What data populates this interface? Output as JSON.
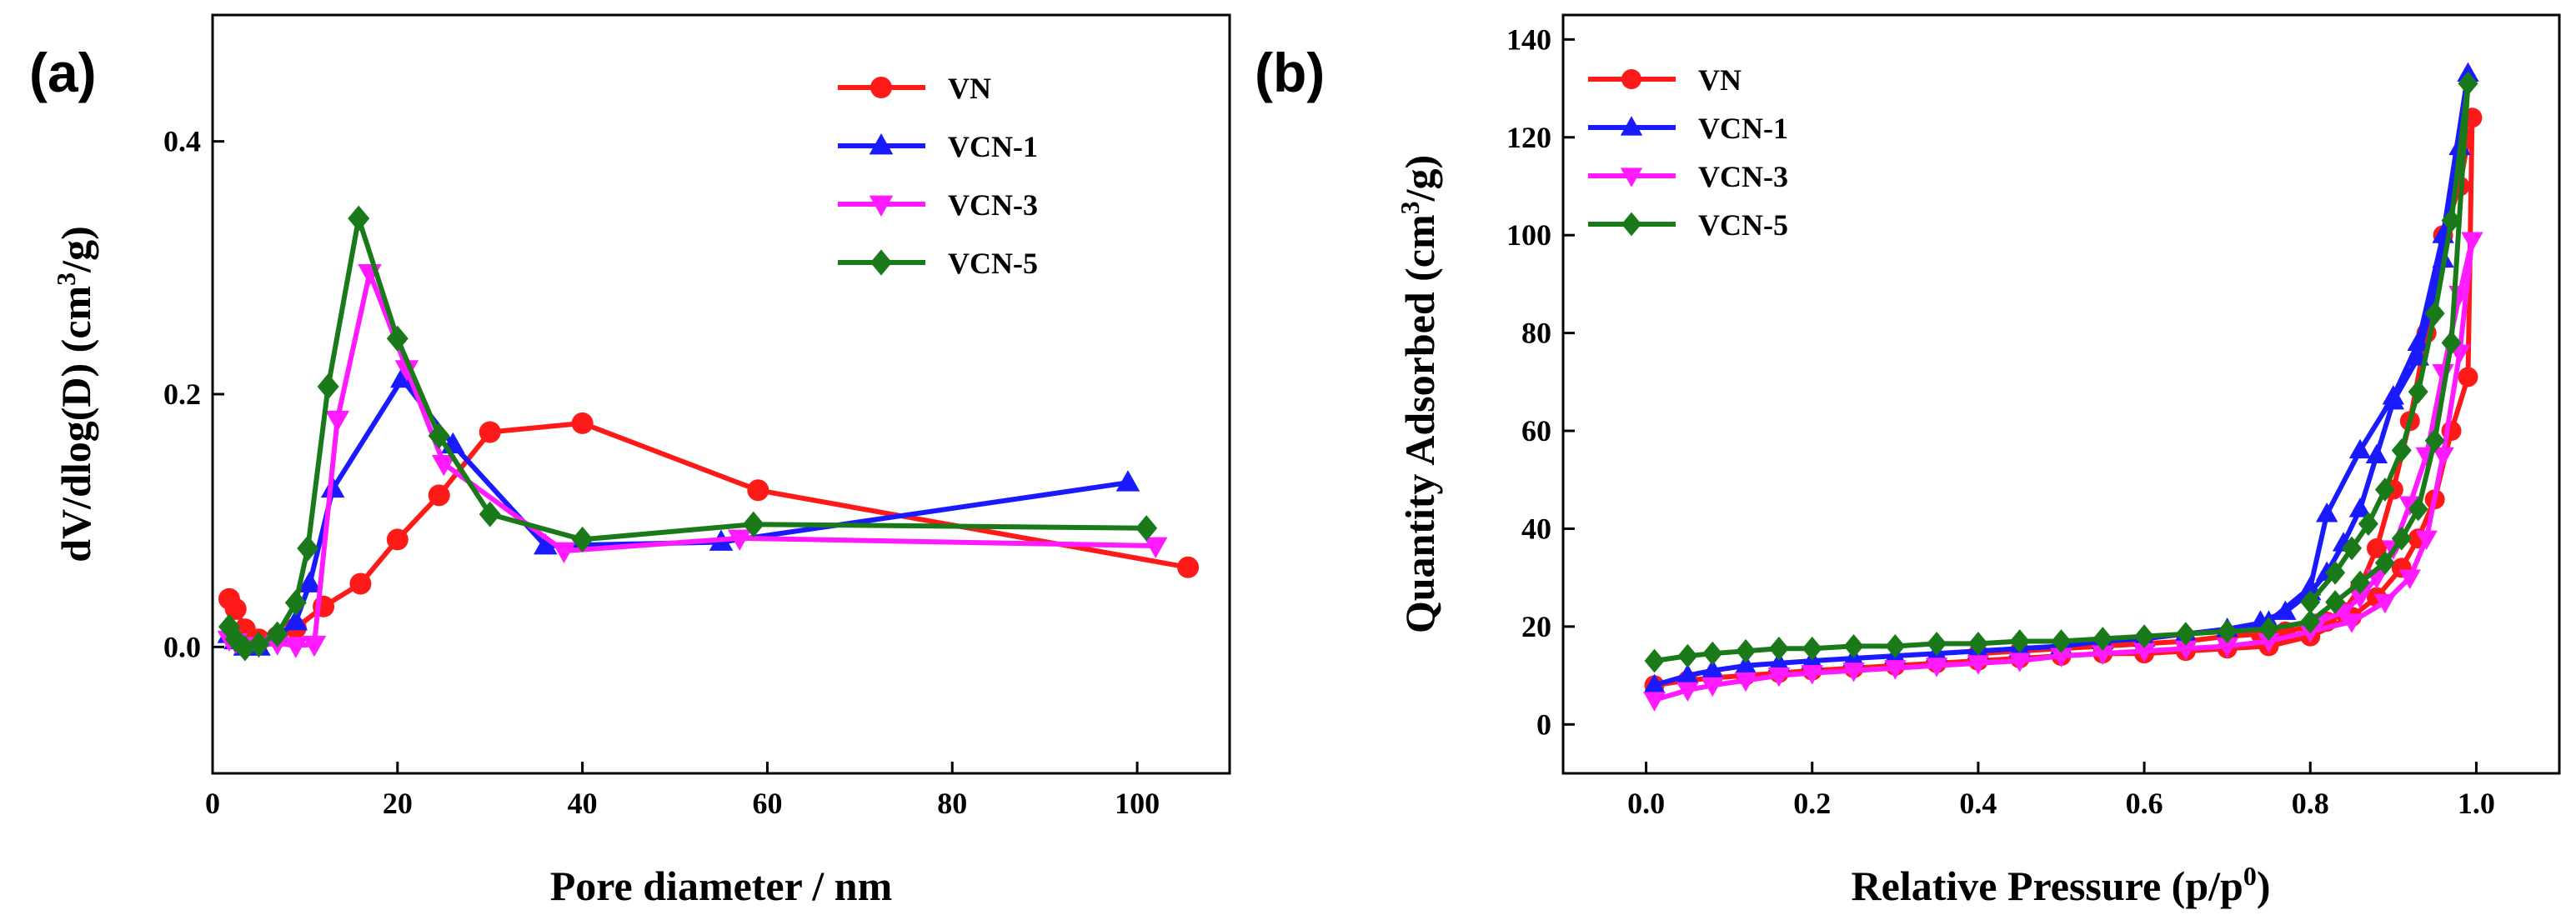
{
  "chart_data": [
    {
      "type": "line",
      "panel_label": "(a)",
      "xlabel": "Pore diameter / nm",
      "ylabel_main": "dV/dlog(D) (cm",
      "ylabel_sup": "3",
      "ylabel_end": "/g)",
      "xlim": [
        0,
        110
      ],
      "ylim": [
        -0.1,
        0.5
      ],
      "xticks": [
        "0",
        "20",
        "40",
        "60",
        "80",
        "100"
      ],
      "yticks": [
        "0.0",
        "0.2",
        "0.4"
      ],
      "legend_position": "top-right",
      "series": [
        {
          "name": "VN",
          "color": "#ff1a1a",
          "marker": "circle",
          "x": [
            1.8,
            2.5,
            3.5,
            5,
            7,
            9,
            12,
            16,
            20,
            24.5,
            30,
            40,
            59,
            105.5
          ],
          "y": [
            0.038,
            0.03,
            0.014,
            0.006,
            0.008,
            0.015,
            0.032,
            0.05,
            0.085,
            0.12,
            0.17,
            0.177,
            0.124,
            0.063
          ]
        },
        {
          "name": "VCN-1",
          "color": "#1a1aff",
          "marker": "triangle-up",
          "x": [
            1.8,
            2.5,
            3.5,
            5,
            7,
            9,
            10.5,
            13,
            20.5,
            26,
            36,
            55,
            99
          ],
          "y": [
            0.01,
            0.005,
            0.0,
            0.0,
            0.008,
            0.02,
            0.05,
            0.125,
            0.212,
            0.16,
            0.08,
            0.083,
            0.13
          ]
        },
        {
          "name": "VCN-3",
          "color": "#ff1aff",
          "marker": "triangle-down",
          "x": [
            1.8,
            2.5,
            3.5,
            5,
            7,
            9,
            11,
            13.5,
            17,
            21,
            25,
            38,
            57,
            102
          ],
          "y": [
            0.006,
            0.004,
            0.001,
            0.001,
            0.003,
            0.001,
            0.002,
            0.18,
            0.296,
            0.22,
            0.145,
            0.076,
            0.086,
            0.08
          ]
        },
        {
          "name": "VCN-5",
          "color": "#1a7a1a",
          "marker": "diamond",
          "x": [
            1.8,
            2.5,
            3.5,
            5,
            7,
            9,
            10.3,
            12.5,
            15.8,
            20,
            24.5,
            30,
            40,
            58.5,
            101
          ],
          "y": [
            0.016,
            0.006,
            -0.001,
            0.002,
            0.01,
            0.035,
            0.078,
            0.206,
            0.339,
            0.244,
            0.167,
            0.105,
            0.085,
            0.097,
            0.094
          ]
        }
      ]
    },
    {
      "type": "line",
      "panel_label": "(b)",
      "xlabel_main": "Relative Pressure (p/p",
      "xlabel_sup": "0",
      "xlabel_end": ")",
      "ylabel_main": "Quantity Adsorbed (cm",
      "ylabel_sup": "3",
      "ylabel_end": "/g)",
      "xlim": [
        -0.1,
        1.1
      ],
      "ylim": [
        -10,
        145
      ],
      "xticks": [
        "0.0",
        "0.2",
        "0.4",
        "0.6",
        "0.8",
        "1.0"
      ],
      "yticks": [
        "0",
        "20",
        "40",
        "60",
        "80",
        "100",
        "120",
        "140"
      ],
      "legend_position": "top-left",
      "series": [
        {
          "name": "VN",
          "color": "#ff1a1a",
          "marker": "circle",
          "x": [
            0.01,
            0.05,
            0.08,
            0.12,
            0.16,
            0.2,
            0.25,
            0.3,
            0.35,
            0.4,
            0.45,
            0.5,
            0.55,
            0.6,
            0.65,
            0.7,
            0.75,
            0.8,
            0.85,
            0.88,
            0.91,
            0.93,
            0.95,
            0.97,
            0.99,
            0.995,
            0.98,
            0.96,
            0.94,
            0.92,
            0.9,
            0.88,
            0.86,
            0.84,
            0.82,
            0.8,
            0.77,
            0.74,
            0.7,
            0.65,
            0.6,
            0.55,
            0.5,
            0.45,
            0.4
          ],
          "y": [
            8,
            9,
            9.5,
            10,
            10.5,
            11,
            11.5,
            12,
            12.5,
            13,
            13.5,
            14,
            14.5,
            14.5,
            15,
            15.5,
            16,
            18,
            22,
            26,
            32,
            38,
            46,
            60,
            71,
            124,
            110,
            100,
            80,
            62,
            48,
            36,
            28,
            23,
            21,
            20,
            19,
            18.5,
            18,
            17,
            16.5,
            16,
            15.5,
            15,
            14.5
          ]
        },
        {
          "name": "VCN-1",
          "color": "#1a1aff",
          "marker": "triangle-up",
          "x": [
            0.01,
            0.05,
            0.08,
            0.12,
            0.16,
            0.2,
            0.25,
            0.3,
            0.35,
            0.4,
            0.45,
            0.5,
            0.55,
            0.6,
            0.65,
            0.7,
            0.75,
            0.8,
            0.82,
            0.86,
            0.9,
            0.93,
            0.96,
            0.99,
            0.98,
            0.96,
            0.93,
            0.9,
            0.88,
            0.86,
            0.84,
            0.82,
            0.8,
            0.77,
            0.74
          ],
          "y": [
            8,
            10,
            11,
            12,
            12.5,
            13,
            13.5,
            14,
            14.5,
            15,
            15.5,
            16,
            17,
            17.5,
            18.5,
            19.5,
            21,
            28,
            43,
            56,
            67,
            78,
            100,
            133,
            118,
            95,
            75,
            66,
            55,
            44,
            37,
            31,
            27,
            23,
            21
          ]
        },
        {
          "name": "VCN-3",
          "color": "#ff1aff",
          "marker": "triangle-down",
          "x": [
            0.01,
            0.05,
            0.08,
            0.12,
            0.16,
            0.2,
            0.25,
            0.3,
            0.35,
            0.4,
            0.45,
            0.5,
            0.55,
            0.6,
            0.65,
            0.7,
            0.75,
            0.8,
            0.85,
            0.89,
            0.92,
            0.94,
            0.96,
            0.98,
            0.995,
            0.98,
            0.96,
            0.94,
            0.92,
            0.9,
            0.88,
            0.86,
            0.84,
            0.81
          ],
          "y": [
            5,
            7,
            8,
            9,
            10,
            10.5,
            11,
            11.5,
            12,
            12.5,
            13,
            14,
            14.5,
            15,
            15.5,
            16,
            17,
            19,
            21,
            25,
            30,
            38,
            55,
            76,
            99,
            88,
            72,
            55,
            45,
            36,
            30,
            26,
            23,
            21
          ]
        },
        {
          "name": "VCN-5",
          "color": "#1a7a1a",
          "marker": "diamond",
          "x": [
            0.01,
            0.05,
            0.08,
            0.12,
            0.16,
            0.2,
            0.25,
            0.3,
            0.35,
            0.4,
            0.45,
            0.5,
            0.55,
            0.6,
            0.65,
            0.7,
            0.75,
            0.8,
            0.83,
            0.86,
            0.89,
            0.91,
            0.93,
            0.95,
            0.97,
            0.99,
            0.97,
            0.95,
            0.93,
            0.91,
            0.89,
            0.87,
            0.85,
            0.83,
            0.8
          ],
          "y": [
            13,
            14,
            14.5,
            15,
            15.5,
            15.5,
            16,
            16,
            16.5,
            16.5,
            17,
            17,
            17.5,
            18,
            18.5,
            19,
            19.5,
            21,
            25,
            29,
            33,
            38,
            44,
            58,
            78,
            131,
            103,
            84,
            68,
            56,
            48,
            41,
            36,
            31,
            25
          ]
        }
      ]
    }
  ]
}
